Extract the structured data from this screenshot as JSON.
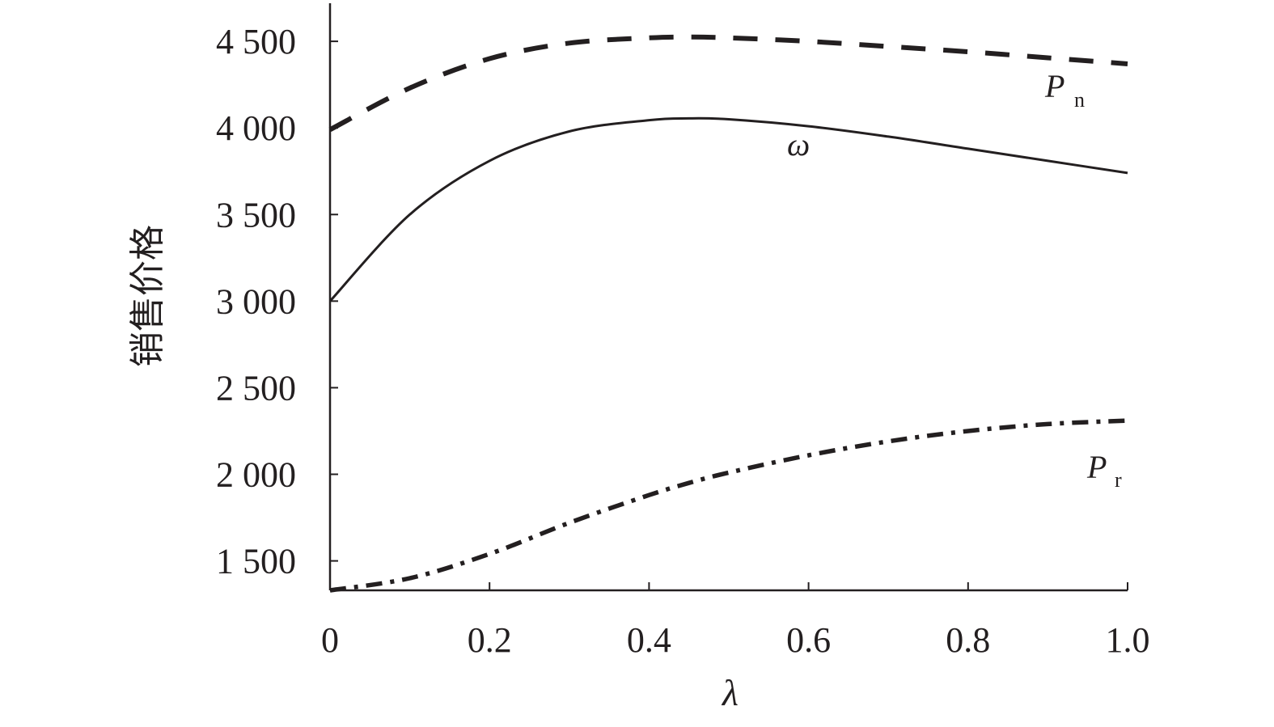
{
  "chart_data": {
    "type": "line",
    "xlabel": "λ",
    "ylabel": "销售价格",
    "xlim": [
      0,
      1.0
    ],
    "ylim": [
      1330,
      4720
    ],
    "x_ticks": [
      "0",
      "0.2",
      "0.4",
      "0.6",
      "0.8",
      "1.0"
    ],
    "x_tick_values": [
      0,
      0.2,
      0.4,
      0.6,
      0.8,
      1.0
    ],
    "y_ticks": [
      "1 500",
      "2 000",
      "2 500",
      "3 000",
      "3 500",
      "4 000",
      "4 500"
    ],
    "y_tick_values": [
      1500,
      2000,
      2500,
      3000,
      3500,
      4000,
      4500
    ],
    "grid": false,
    "legend": "none",
    "colors": {
      "line": "#231f20"
    },
    "x": [
      0,
      0.1,
      0.2,
      0.3,
      0.4,
      0.45,
      0.5,
      0.6,
      0.7,
      0.8,
      0.9,
      1.0
    ],
    "series": [
      {
        "name": "P",
        "subscript": "n",
        "style": "dashed",
        "values": [
          3990,
          4230,
          4400,
          4490,
          4520,
          4525,
          4520,
          4500,
          4470,
          4440,
          4405,
          4370
        ]
      },
      {
        "name": "ω",
        "subscript": "",
        "style": "solid",
        "values": [
          3000,
          3500,
          3810,
          3980,
          4045,
          4055,
          4050,
          4010,
          3950,
          3880,
          3810,
          3740
        ]
      },
      {
        "name": "P",
        "subscript": "r",
        "style": "dashdot",
        "values": [
          1330,
          1400,
          1540,
          1720,
          1880,
          1950,
          2010,
          2110,
          2190,
          2250,
          2290,
          2310
        ]
      }
    ]
  }
}
